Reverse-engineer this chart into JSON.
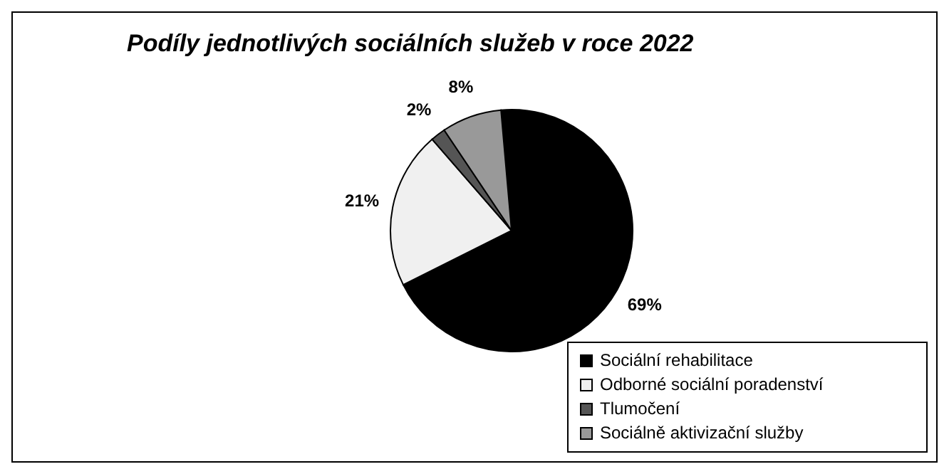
{
  "chart_data": {
    "type": "pie",
    "title": "Podíly jednotlivých sociálních služeb v roce 2022",
    "categories": [
      "Sociální rehabilitace",
      "Odborné sociální poradenství",
      "Tlumočení",
      "Sociálně aktivizační služby"
    ],
    "values": [
      69,
      21,
      2,
      8
    ],
    "colors": [
      "#000000",
      "#f0f0f0",
      "#555555",
      "#999999"
    ],
    "value_labels": [
      "69%",
      "21%",
      "2%",
      "8%"
    ],
    "legend": "bottom right"
  }
}
